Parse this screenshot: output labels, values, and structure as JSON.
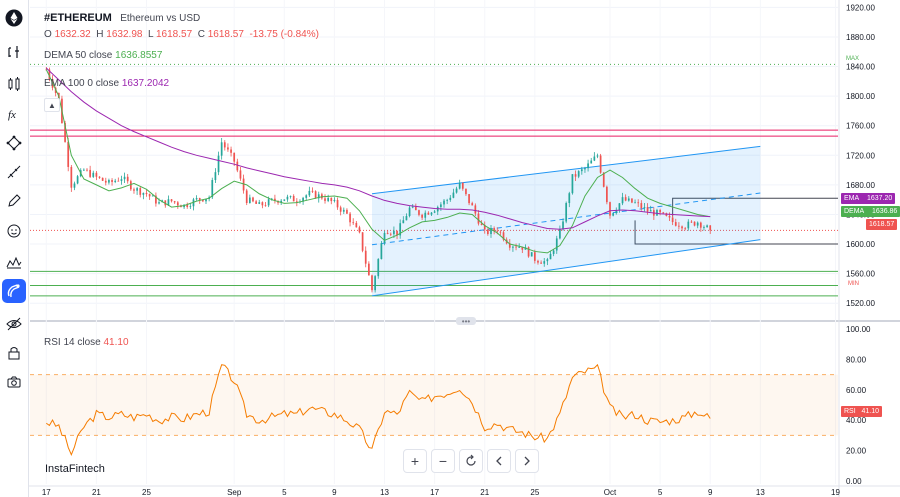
{
  "header": {
    "symbol": "#ETHEREUM",
    "description": "Ethereum vs USD",
    "ohlc": {
      "o_label": "O",
      "o": "1632.32",
      "h_label": "H",
      "h": "1632.98",
      "l_label": "L",
      "l": "1618.57",
      "c_label": "C",
      "c": "1618.57",
      "change": "-13.75 (-0.84%)"
    }
  },
  "indicators": {
    "dema": {
      "name": "DEMA",
      "params": "50 close",
      "value": "1636.8557"
    },
    "ema": {
      "name": "EMA",
      "params": "100 0 close",
      "value": "1637.2042"
    },
    "rsi": {
      "name": "RSI",
      "params": "14 close",
      "value": "41.10"
    }
  },
  "watermark": "InstaFintech",
  "price_badges": {
    "ema": {
      "label": "EMA",
      "value": "1637.20"
    },
    "dema": {
      "label": "DEMA",
      "value": "1636.86"
    },
    "last": {
      "value": "1618.57"
    },
    "rsi": {
      "label": "RSI",
      "value": "41.10"
    }
  },
  "markers": {
    "max": "MAX",
    "min": "MIN"
  },
  "bottom_controls": {
    "zoom_in": "+",
    "zoom_out": "−"
  },
  "toolbar_icons": [
    "crosshair-icon",
    "trend-line-icon",
    "fib-icon",
    "pattern-icon",
    "brush-icon",
    "emoji-icon",
    "measure-icon",
    "magnet-icon",
    "hide-icon",
    "lock-icon",
    "screenshot-icon"
  ],
  "colors": {
    "up": "#26a69a",
    "down": "#ef5350",
    "dema": "#4caf50",
    "ema": "#9c27b0",
    "rsi": "#f57c00",
    "channel": "#2196f3",
    "magenta": "#e91e63",
    "accent": "#2962ff"
  },
  "chart_data": [
    {
      "type": "candlestick",
      "title": "#ETHEREUM Ethereum vs USD",
      "ylim": [
        1500,
        1930
      ],
      "y_ticks": [
        "1920.00",
        "1880.00",
        "1840.00",
        "1800.00",
        "1760.00",
        "1720.00",
        "1680.00",
        "1640.00",
        "1600.00",
        "1560.00",
        "1520.00"
      ],
      "x_ticks": [
        {
          "label": "17",
          "day": 0
        },
        {
          "label": "21",
          "day": 4
        },
        {
          "label": "25",
          "day": 8
        },
        {
          "label": "Sep",
          "day": 15
        },
        {
          "label": "5",
          "day": 19
        },
        {
          "label": "9",
          "day": 23
        },
        {
          "label": "13",
          "day": 27
        },
        {
          "label": "17",
          "day": 31
        },
        {
          "label": "21",
          "day": 35
        },
        {
          "label": "25",
          "day": 39
        },
        {
          "label": "Oct",
          "day": 45
        },
        {
          "label": "5",
          "day": 49
        },
        {
          "label": "9",
          "day": 53
        },
        {
          "label": "13",
          "day": 57
        },
        {
          "label": "19",
          "day": 63
        }
      ],
      "x_range_days": [
        -1.3,
        63.2
      ],
      "series": [
        {
          "name": "DEMA",
          "values": [
            1836,
            1800,
            1720,
            1688,
            1680,
            1672,
            1676,
            1682,
            1674,
            1660,
            1650,
            1652,
            1658,
            1662,
            1675,
            1685,
            1680,
            1668,
            1660,
            1655,
            1656,
            1660,
            1664,
            1665,
            1662,
            1645,
            1620,
            1605,
            1612,
            1622,
            1630,
            1632,
            1636,
            1642,
            1640,
            1625,
            1615,
            1600,
            1596,
            1590,
            1588,
            1598,
            1625,
            1665,
            1690,
            1700,
            1690,
            1675,
            1662,
            1655,
            1650,
            1645,
            1640,
            1637
          ]
        },
        {
          "name": "EMA",
          "values": [
            1838,
            1822,
            1806,
            1792,
            1780,
            1770,
            1760,
            1752,
            1745,
            1738,
            1731,
            1725,
            1720,
            1716,
            1712,
            1708,
            1703,
            1699,
            1695,
            1691,
            1688,
            1685,
            1682,
            1680,
            1677,
            1672,
            1665,
            1659,
            1655,
            1652,
            1650,
            1648,
            1647,
            1647,
            1646,
            1643,
            1639,
            1634,
            1629,
            1625,
            1621,
            1620,
            1622,
            1630,
            1638,
            1645,
            1646,
            1645,
            1643,
            1641,
            1640,
            1639,
            1638,
            1637
          ]
        }
      ],
      "candles_close": [
        1836,
        1795,
        1680,
        1700,
        1690,
        1682,
        1690,
        1675,
        1668,
        1655,
        1658,
        1652,
        1660,
        1664,
        1738,
        1712,
        1660,
        1652,
        1658,
        1662,
        1660,
        1668,
        1664,
        1655,
        1640,
        1612,
        1538,
        1620,
        1615,
        1648,
        1640,
        1648,
        1660,
        1680,
        1650,
        1615,
        1620,
        1600,
        1596,
        1580,
        1575,
        1615,
        1690,
        1702,
        1720,
        1640,
        1660,
        1655,
        1645,
        1640,
        1630,
        1625,
        1630,
        1618.57
      ],
      "last_close": 1618.57,
      "horizontal_levels": [
        {
          "price": 1754,
          "color": "#e91e63"
        },
        {
          "price": 1746,
          "color": "#e91e63"
        },
        {
          "price": 1843,
          "color": "#4caf50",
          "dotted": true
        },
        {
          "price": 1563,
          "color": "#4caf50"
        },
        {
          "price": 1544,
          "color": "#4caf50"
        },
        {
          "price": 1530,
          "color": "#4caf50"
        }
      ],
      "channel": {
        "start": {
          "day": 26,
          "lower": 1530,
          "upper": 1668
        },
        "end": {
          "day": 57,
          "lower": 1606,
          "upper": 1732
        }
      },
      "range_box": {
        "day_from": 47,
        "day_to": 63,
        "top": 1662,
        "bottom": 1600
      }
    },
    {
      "type": "line",
      "title": "RSI 14 close",
      "ylim": [
        -2,
        102
      ],
      "y_ticks": [
        "100.00",
        "80.00",
        "60.00",
        "40.00",
        "20.00",
        "0.00"
      ],
      "bands": {
        "upper": 70,
        "lower": 30
      },
      "series": [
        {
          "name": "RSI",
          "values": [
            39,
            36,
            18,
            36,
            44,
            42,
            44,
            42,
            44,
            40,
            42,
            41,
            44,
            46,
            76,
            66,
            44,
            40,
            42,
            44,
            44,
            48,
            46,
            44,
            40,
            34,
            20,
            46,
            44,
            58,
            52,
            56,
            58,
            62,
            52,
            36,
            38,
            34,
            32,
            29,
            28,
            44,
            68,
            72,
            74,
            48,
            42,
            44,
            40,
            39,
            40,
            42,
            46,
            41.1
          ]
        }
      ]
    }
  ]
}
